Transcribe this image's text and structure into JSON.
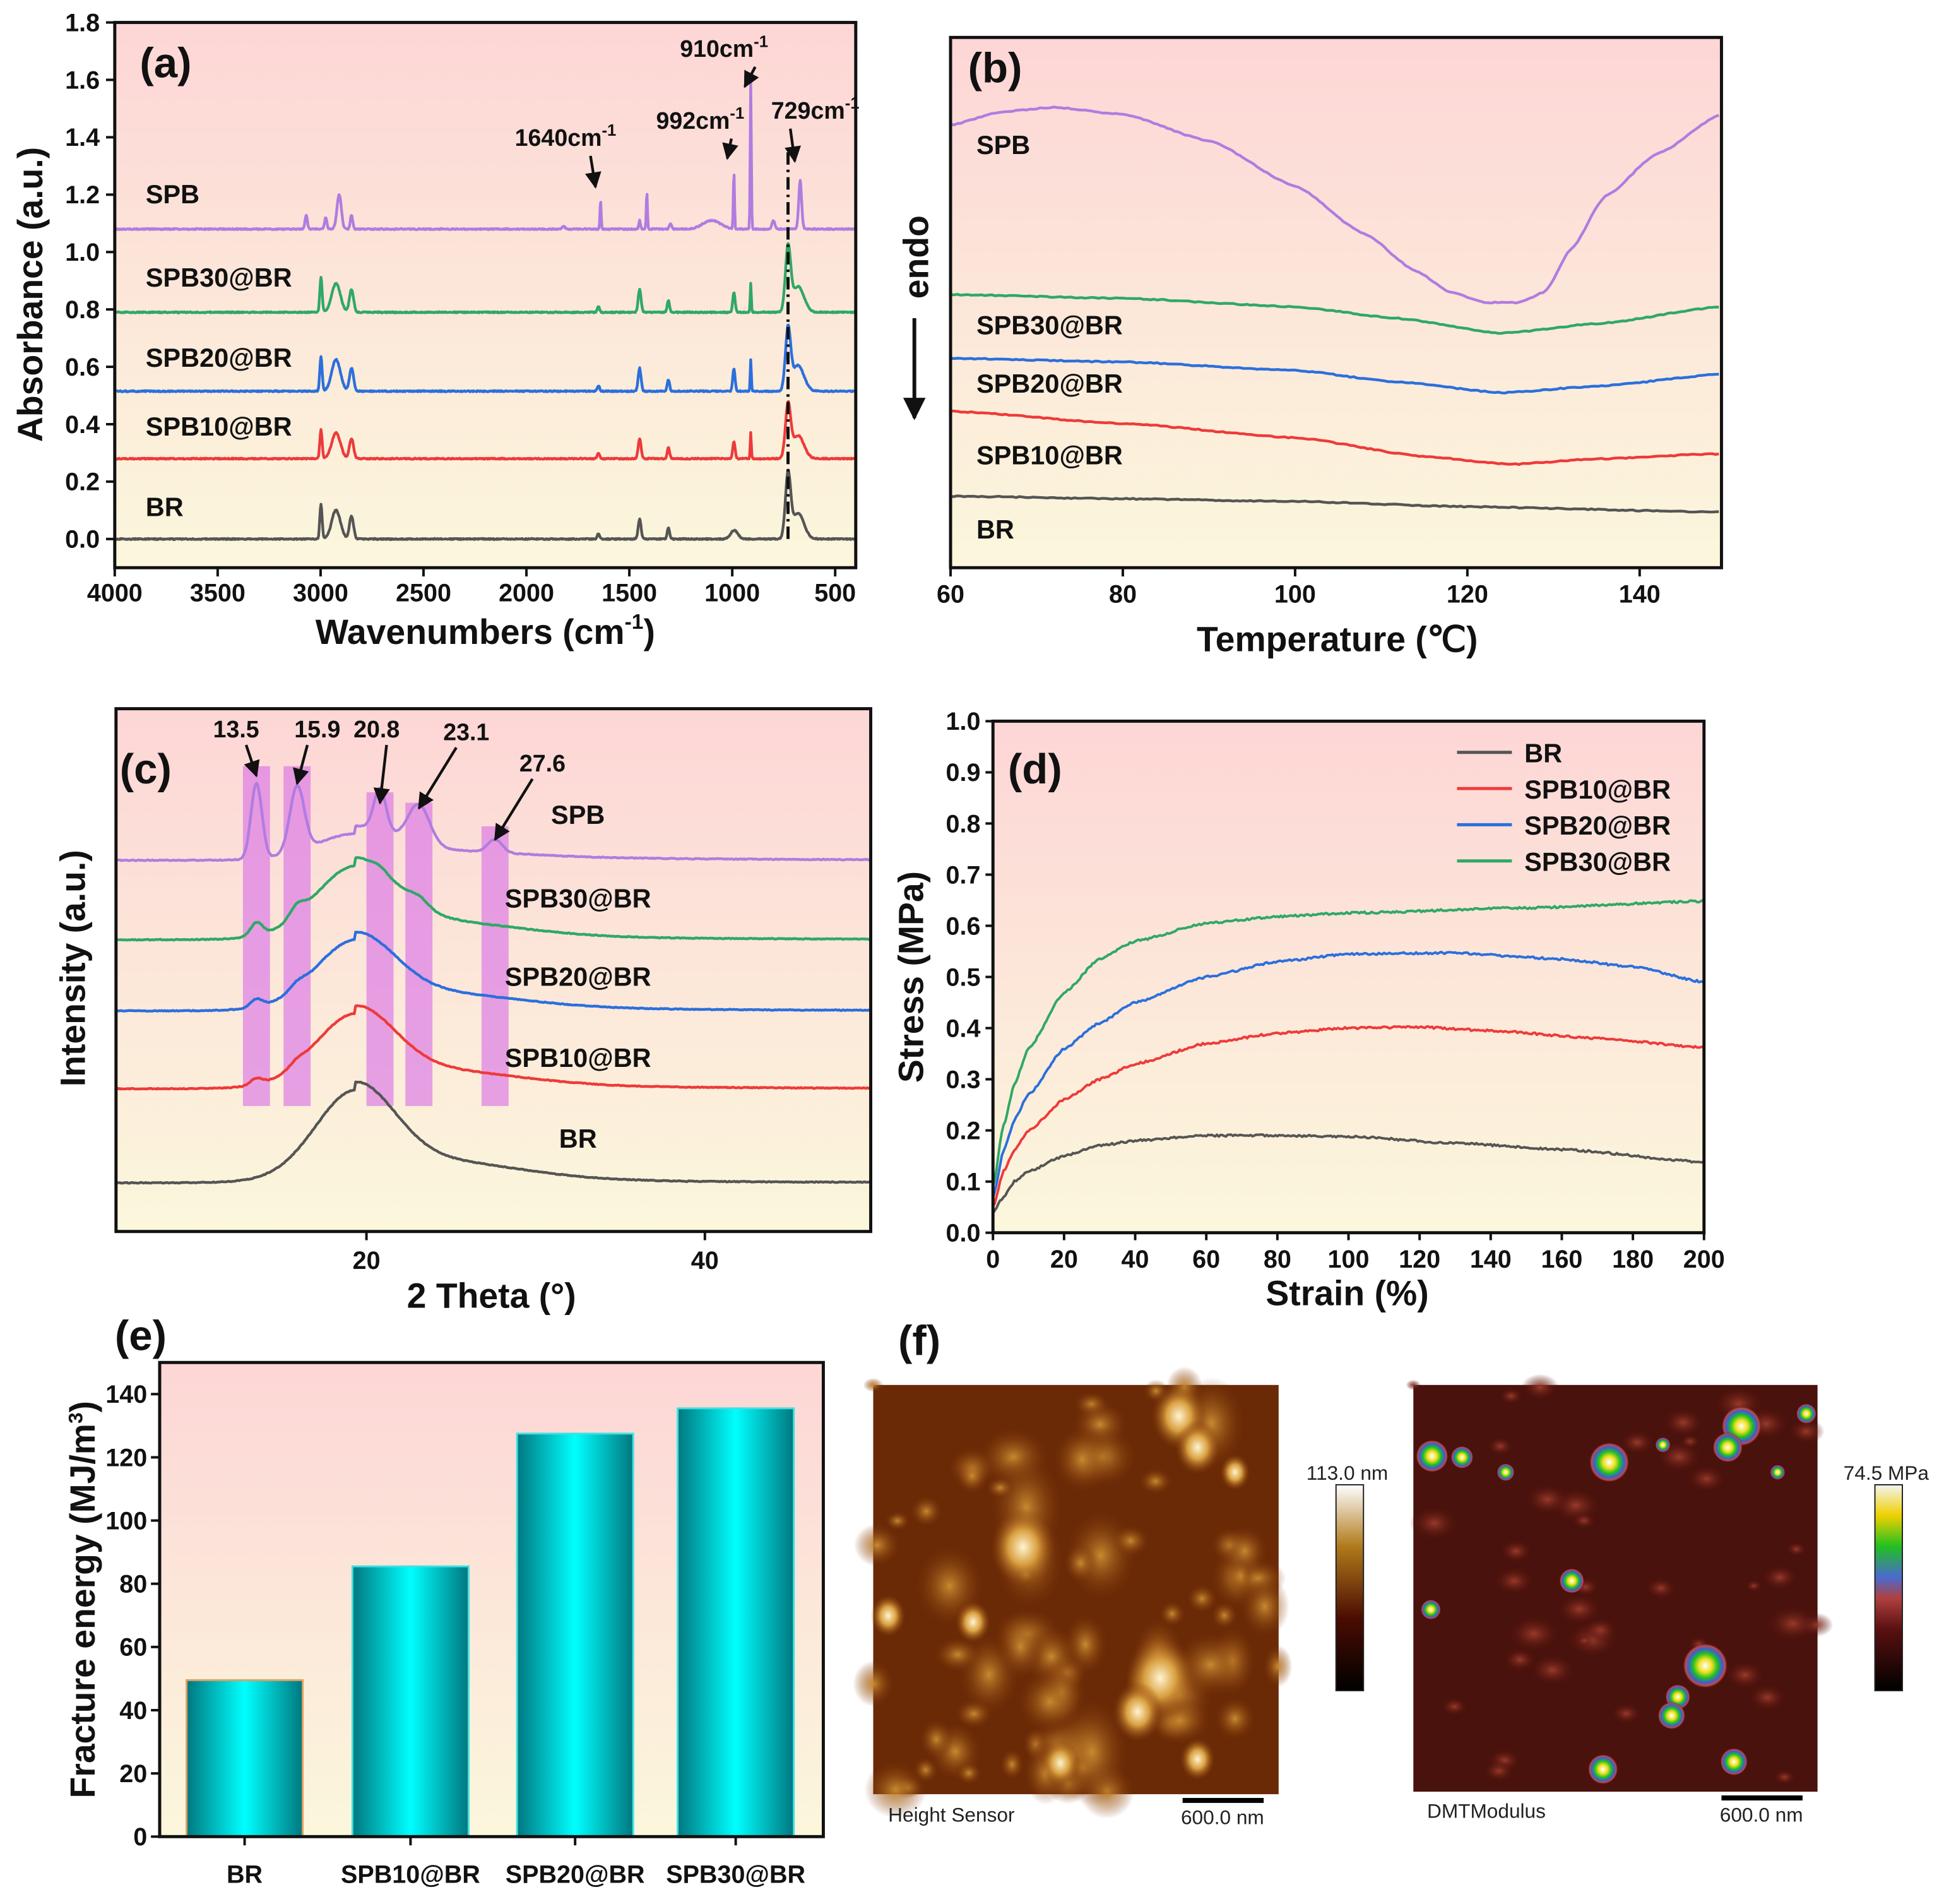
{
  "colors": {
    "BR": "#555555",
    "SPB10@BR": "#ee3a3a",
    "SPB20@BR": "#2b6fdc",
    "SPB30@BR": "#2fa866",
    "SPB": "#b07ce0",
    "bar": "#00e5e5",
    "bg_top": "#fdd8d8",
    "bg_bottom": "#fbf6dc"
  },
  "chart_data": [
    {
      "panel": "(a)",
      "type": "line",
      "xlabel": "Wavenumbers (cm",
      "xlabel_sup": "-1",
      "xlabel_end": ")",
      "ylabel": "Absorbance (a.u.)",
      "xlim": [
        4000,
        400
      ],
      "ylim": [
        -0.1,
        1.8
      ],
      "xticks": [
        4000,
        3500,
        3000,
        2500,
        2000,
        1500,
        1000,
        500
      ],
      "yticks": [
        "0.0",
        "0.2",
        "0.4",
        "0.6",
        "0.8",
        "1.0",
        "1.2",
        "1.4",
        "1.6",
        "1.8"
      ],
      "series": [
        {
          "name": "BR",
          "offset": 0.0,
          "label_y": 0.08,
          "peaks": [
            [
              2998,
              0.12,
              8
            ],
            [
              2925,
              0.1,
              30
            ],
            [
              2850,
              0.08,
              14
            ],
            [
              1650,
              0.02,
              8
            ],
            [
              1450,
              0.07,
              10
            ],
            [
              1310,
              0.04,
              8
            ],
            [
              990,
              0.03,
              25
            ],
            [
              729,
              0.22,
              18
            ],
            [
              680,
              0.09,
              40
            ]
          ]
        },
        {
          "name": "SPB10@BR",
          "offset": 0.28,
          "label_y": 0.36,
          "peaks": [
            [
              2998,
              0.1,
              8
            ],
            [
              2925,
              0.09,
              30
            ],
            [
              2850,
              0.07,
              14
            ],
            [
              1650,
              0.02,
              8
            ],
            [
              1450,
              0.07,
              10
            ],
            [
              1310,
              0.04,
              8
            ],
            [
              992,
              0.06,
              8
            ],
            [
              910,
              0.09,
              4
            ],
            [
              729,
              0.18,
              18
            ],
            [
              680,
              0.08,
              40
            ]
          ]
        },
        {
          "name": "SPB20@BR",
          "offset": 0.515,
          "label_y": 0.6,
          "peaks": [
            [
              2998,
              0.12,
              8
            ],
            [
              2925,
              0.11,
              30
            ],
            [
              2850,
              0.08,
              14
            ],
            [
              1650,
              0.02,
              8
            ],
            [
              1450,
              0.08,
              10
            ],
            [
              1310,
              0.04,
              8
            ],
            [
              992,
              0.08,
              8
            ],
            [
              910,
              0.11,
              4
            ],
            [
              729,
              0.21,
              18
            ],
            [
              680,
              0.09,
              40
            ]
          ]
        },
        {
          "name": "SPB30@BR",
          "offset": 0.79,
          "label_y": 0.88,
          "peaks": [
            [
              2998,
              0.12,
              8
            ],
            [
              2925,
              0.1,
              30
            ],
            [
              2850,
              0.08,
              14
            ],
            [
              1650,
              0.02,
              8
            ],
            [
              1450,
              0.08,
              10
            ],
            [
              1310,
              0.04,
              8
            ],
            [
              992,
              0.07,
              8
            ],
            [
              910,
              0.1,
              4
            ],
            [
              729,
              0.22,
              18
            ],
            [
              680,
              0.09,
              40
            ]
          ]
        },
        {
          "name": "SPB",
          "offset": 1.08,
          "label_y": 1.17,
          "peaks": [
            [
              3070,
              0.05,
              8
            ],
            [
              2975,
              0.04,
              8
            ],
            [
              2910,
              0.12,
              15
            ],
            [
              2850,
              0.05,
              8
            ],
            [
              1820,
              0.01,
              10
            ],
            [
              1640,
              0.1,
              4
            ],
            [
              1450,
              0.03,
              6
            ],
            [
              1415,
              0.13,
              4
            ],
            [
              1300,
              0.02,
              8
            ],
            [
              1100,
              0.03,
              60
            ],
            [
              992,
              0.2,
              4
            ],
            [
              910,
              0.52,
              4
            ],
            [
              800,
              0.03,
              10
            ],
            [
              670,
              0.17,
              10
            ]
          ]
        }
      ],
      "vline": {
        "x": 729,
        "y": [
          0.0,
          1.35
        ]
      },
      "annotations": [
        {
          "text": "1640cm",
          "sup": "-1",
          "x": 1640,
          "y": 1.2,
          "tx": 1810,
          "ty": 1.37
        },
        {
          "text": "992cm",
          "sup": "-1",
          "x": 1000,
          "y": 1.3,
          "tx": 1095,
          "ty": 1.43
        },
        {
          "text": "910cm",
          "sup": "-1",
          "x": 915,
          "y": 1.55,
          "tx": 1040,
          "ty": 1.68
        },
        {
          "text": "729cm",
          "sup": "-1",
          "x": 690,
          "y": 1.29,
          "tx": 730,
          "ty": 1.43
        }
      ]
    },
    {
      "panel": "(b)",
      "type": "line",
      "xlabel": "Temperature (℃)",
      "ylabel": "endo",
      "xlim": [
        60,
        149.5
      ],
      "ylim": [
        0,
        10
      ],
      "xticks": [
        60,
        80,
        100,
        120,
        140
      ],
      "series": [
        {
          "name": "SPB",
          "label_y": 7.8,
          "points": [
            [
              60,
              8.35
            ],
            [
              66,
              8.6
            ],
            [
              72,
              8.68
            ],
            [
              80,
              8.55
            ],
            [
              90,
              8.05
            ],
            [
              100,
              7.2
            ],
            [
              108,
              6.3
            ],
            [
              114,
              5.6
            ],
            [
              118,
              5.2
            ],
            [
              122,
              5.0
            ],
            [
              126,
              5.0
            ],
            [
              129,
              5.2
            ],
            [
              132,
              6.0
            ],
            [
              136,
              7.0
            ],
            [
              142,
              7.8
            ],
            [
              149.5,
              8.55
            ]
          ]
        },
        {
          "name": "SPB30@BR",
          "label_y": 4.4,
          "points": [
            [
              60,
              5.15
            ],
            [
              80,
              5.08
            ],
            [
              100,
              4.92
            ],
            [
              112,
              4.7
            ],
            [
              124,
              4.42
            ],
            [
              135,
              4.6
            ],
            [
              149.5,
              4.92
            ]
          ]
        },
        {
          "name": "SPB20@BR",
          "label_y": 3.3,
          "points": [
            [
              60,
              3.95
            ],
            [
              80,
              3.88
            ],
            [
              100,
              3.72
            ],
            [
              112,
              3.5
            ],
            [
              124,
              3.3
            ],
            [
              135,
              3.42
            ],
            [
              149.5,
              3.65
            ]
          ]
        },
        {
          "name": "SPB10@BR",
          "label_y": 1.95,
          "points": [
            [
              60,
              2.95
            ],
            [
              80,
              2.72
            ],
            [
              100,
              2.45
            ],
            [
              115,
              2.1
            ],
            [
              125,
              1.95
            ],
            [
              135,
              2.05
            ],
            [
              149.5,
              2.15
            ]
          ]
        },
        {
          "name": "BR",
          "label_y": 0.55,
          "points": [
            [
              60,
              1.35
            ],
            [
              80,
              1.3
            ],
            [
              100,
              1.25
            ],
            [
              120,
              1.15
            ],
            [
              149.5,
              1.05
            ]
          ]
        }
      ]
    },
    {
      "panel": "(c)",
      "type": "line",
      "xlabel": "2 Theta (°)",
      "ylabel": "Intensity (a.u.)",
      "xlim": [
        5.2,
        49.8
      ],
      "ylim": [
        0,
        10
      ],
      "xticks": [
        20,
        40
      ],
      "series": [
        {
          "name": "SPB",
          "base": 7.1,
          "amorph": 0.45,
          "peaks": [
            [
              13.5,
              1.45,
              0.45
            ],
            [
              15.9,
              1.25,
              0.6
            ],
            [
              20.8,
              0.8,
              0.5
            ],
            [
              23.1,
              0.75,
              0.9
            ],
            [
              27.6,
              0.25,
              0.6
            ]
          ]
        },
        {
          "name": "SPB30@BR",
          "base": 5.58,
          "amorph": 1.25,
          "peaks": [
            [
              13.5,
              0.25,
              0.5
            ],
            [
              15.9,
              0.2,
              0.6
            ],
            [
              20.8,
              0.05,
              0.5
            ],
            [
              23.1,
              0.15,
              0.8
            ]
          ]
        },
        {
          "name": "SPB20@BR",
          "base": 4.22,
          "amorph": 1.2,
          "peaks": [
            [
              13.5,
              0.15,
              0.5
            ],
            [
              15.9,
              0.1,
              0.6
            ]
          ]
        },
        {
          "name": "SPB10@BR",
          "base": 2.73,
          "amorph": 1.27,
          "peaks": [
            [
              13.5,
              0.12,
              0.5
            ],
            [
              15.9,
              0.08,
              0.6
            ]
          ]
        },
        {
          "name": "BR",
          "base": 0.93,
          "amorph": 1.57,
          "peaks": []
        }
      ],
      "highlight_bands": [
        [
          13.5,
          8.9
        ],
        [
          15.9,
          8.9
        ],
        [
          20.8,
          8.4
        ],
        [
          23.1,
          8.2
        ],
        [
          27.6,
          7.75
        ]
      ],
      "annotations": [
        {
          "text": "13.5",
          "x": 13.5,
          "y": 8.62,
          "tx": 12.3,
          "ty": 9.45
        },
        {
          "text": "15.9",
          "x": 15.9,
          "y": 8.47,
          "tx": 17.1,
          "ty": 9.45
        },
        {
          "text": "20.8",
          "x": 20.8,
          "y": 8.1,
          "tx": 20.6,
          "ty": 9.45
        },
        {
          "text": "23.1",
          "x": 23.1,
          "y": 8.0,
          "tx": 25.9,
          "ty": 9.4
        },
        {
          "text": "27.6",
          "x": 27.6,
          "y": 7.4,
          "tx": 30.4,
          "ty": 8.8
        }
      ],
      "label_x": 32.5,
      "label_y": [
        7.8,
        6.2,
        4.7,
        3.15,
        1.6
      ]
    },
    {
      "panel": "(d)",
      "type": "line",
      "xlabel": "Strain (%)",
      "ylabel": "Stress (MPa)",
      "xlim": [
        0,
        200
      ],
      "ylim": [
        0,
        1.0
      ],
      "xticks": [
        0,
        20,
        40,
        60,
        80,
        100,
        120,
        140,
        160,
        180,
        200
      ],
      "yticks": [
        "0.0",
        "0.1",
        "0.2",
        "0.3",
        "0.4",
        "0.5",
        "0.6",
        "0.7",
        "0.8",
        "0.9",
        "1.0"
      ],
      "legend": "top-right",
      "series": [
        {
          "name": "BR",
          "points": [
            [
              0,
              0.04
            ],
            [
              3,
              0.07
            ],
            [
              6,
              0.1
            ],
            [
              10,
              0.12
            ],
            [
              20,
              0.15
            ],
            [
              30,
              0.17
            ],
            [
              40,
              0.18
            ],
            [
              60,
              0.19
            ],
            [
              80,
              0.19
            ],
            [
              100,
              0.188
            ],
            [
              130,
              0.175
            ],
            [
              160,
              0.163
            ],
            [
              200,
              0.138
            ]
          ]
        },
        {
          "name": "SPB10@BR",
          "points": [
            [
              0,
              0.05
            ],
            [
              3,
              0.12
            ],
            [
              6,
              0.16
            ],
            [
              10,
              0.2
            ],
            [
              20,
              0.26
            ],
            [
              30,
              0.3
            ],
            [
              40,
              0.33
            ],
            [
              60,
              0.37
            ],
            [
              80,
              0.39
            ],
            [
              100,
              0.4
            ],
            [
              120,
              0.402
            ],
            [
              140,
              0.395
            ],
            [
              170,
              0.38
            ],
            [
              200,
              0.362
            ]
          ]
        },
        {
          "name": "SPB20@BR",
          "points": [
            [
              0,
              0.07
            ],
            [
              3,
              0.16
            ],
            [
              6,
              0.22
            ],
            [
              10,
              0.27
            ],
            [
              20,
              0.36
            ],
            [
              30,
              0.41
            ],
            [
              40,
              0.45
            ],
            [
              60,
              0.5
            ],
            [
              80,
              0.53
            ],
            [
              100,
              0.545
            ],
            [
              130,
              0.547
            ],
            [
              160,
              0.535
            ],
            [
              180,
              0.52
            ],
            [
              200,
              0.49
            ]
          ]
        },
        {
          "name": "SPB30@BR",
          "points": [
            [
              0,
              0.09
            ],
            [
              3,
              0.21
            ],
            [
              6,
              0.29
            ],
            [
              10,
              0.36
            ],
            [
              20,
              0.47
            ],
            [
              30,
              0.535
            ],
            [
              40,
              0.57
            ],
            [
              60,
              0.605
            ],
            [
              80,
              0.618
            ],
            [
              100,
              0.625
            ],
            [
              150,
              0.635
            ],
            [
              200,
              0.648
            ]
          ]
        }
      ]
    },
    {
      "panel": "(e)",
      "type": "bar",
      "xlabel": "",
      "ylabel": "Fracture energy (MJ/m",
      "ylabel_sup": "3",
      "ylabel_end": ")",
      "ylim": [
        0,
        150
      ],
      "yticks": [
        0,
        20,
        40,
        60,
        80,
        100,
        120,
        140
      ],
      "categories": [
        "BR",
        "SPB10@BR",
        "SPB20@BR",
        "SPB30@BR"
      ],
      "values": [
        49.5,
        85.5,
        127.5,
        135.5
      ]
    }
  ],
  "afm": {
    "panel": "(f)",
    "height": {
      "caption": "Height Sensor",
      "scale": "600.0 nm",
      "max": "113.0 nm"
    },
    "modulus": {
      "caption": "DMTModulus",
      "scale": "600.0 nm",
      "max": "74.5 MPa"
    }
  }
}
